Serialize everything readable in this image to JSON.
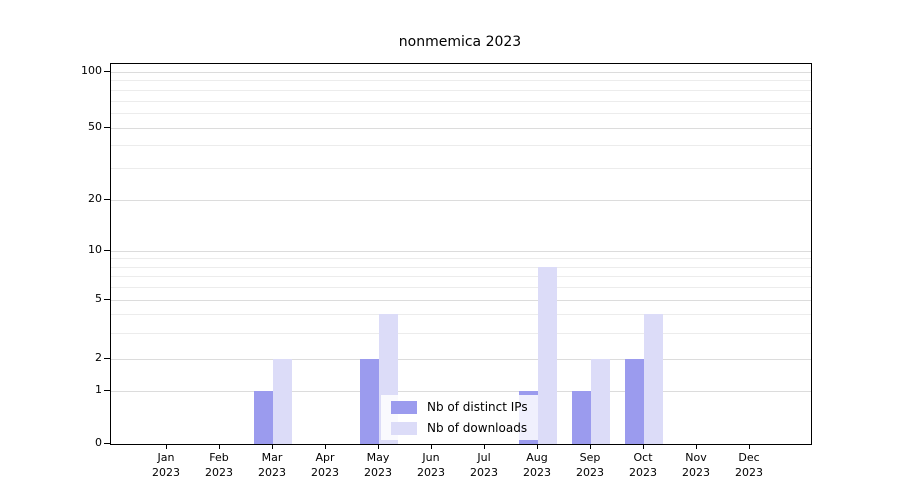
{
  "chart_data": {
    "type": "bar",
    "title": "nonmemica 2023",
    "categories": [
      "Jan 2023",
      "Feb 2023",
      "Mar 2023",
      "Apr 2023",
      "May 2023",
      "Jun 2023",
      "Jul 2023",
      "Aug 2023",
      "Sep 2023",
      "Oct 2023",
      "Nov 2023",
      "Dec 2023"
    ],
    "series": [
      {
        "name": "Nb of distinct IPs",
        "color": "#9b9bee",
        "values": [
          0,
          0,
          1,
          0,
          2,
          0,
          0,
          1,
          1,
          2,
          0,
          0
        ]
      },
      {
        "name": "Nb of downloads",
        "color": "#dcdcf8",
        "values": [
          0,
          0,
          2,
          0,
          4,
          0,
          0,
          8,
          2,
          4,
          0,
          0
        ]
      }
    ],
    "xlabel": "",
    "ylabel": "",
    "yscale": "symlog",
    "ylim": [
      0,
      110
    ],
    "yticks": [
      0,
      1,
      2,
      5,
      10,
      20,
      50,
      100
    ],
    "yticks_minor": [
      3,
      4,
      6,
      7,
      8,
      9,
      30,
      40,
      60,
      70,
      80,
      90
    ],
    "grid": "horizontal, major and minor",
    "legend_position": "lower center inside plot"
  }
}
